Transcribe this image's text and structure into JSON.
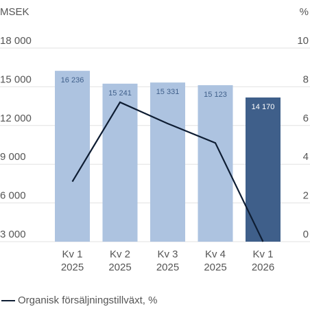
{
  "chart_data": {
    "type": "bar+line",
    "y_axis_label": "MSEK",
    "y2_axis_label": "%",
    "categories": [
      [
        "Kv 1",
        "2025"
      ],
      [
        "Kv 2",
        "2025"
      ],
      [
        "Kv 3",
        "2025"
      ],
      [
        "Kv 4",
        "2025"
      ],
      [
        "Kv 1",
        "2026"
      ]
    ],
    "series": [
      {
        "type": "bar",
        "values": [
          16236,
          15241,
          15331,
          15123,
          14170
        ],
        "value_labels": [
          "16 236",
          "15 241",
          "15 331",
          "15 123",
          "14 170"
        ],
        "colors": [
          "#adc3e0",
          "#adc3e0",
          "#adc3e0",
          "#adc3e0",
          "#3f5f8a"
        ]
      },
      {
        "type": "line",
        "name": "Organisk försäljningstillväxt, %",
        "axis": "y2",
        "color": "#0e1d33",
        "values": [
          3.1,
          7.2,
          6.1,
          5.1,
          0
        ]
      }
    ],
    "ylim": [
      3000,
      18000
    ],
    "yticks": [
      {
        "value": 3000,
        "label": "3 000"
      },
      {
        "value": 6000,
        "label": "6 000"
      },
      {
        "value": 9000,
        "label": "9 000"
      },
      {
        "value": 12000,
        "label": "12 000"
      },
      {
        "value": 15000,
        "label": "15 000"
      },
      {
        "value": 18000,
        "label": "18 000"
      }
    ],
    "y2lim": [
      0,
      10
    ],
    "y2ticks": [
      0,
      2,
      4,
      6,
      8,
      10
    ],
    "grid": true
  }
}
